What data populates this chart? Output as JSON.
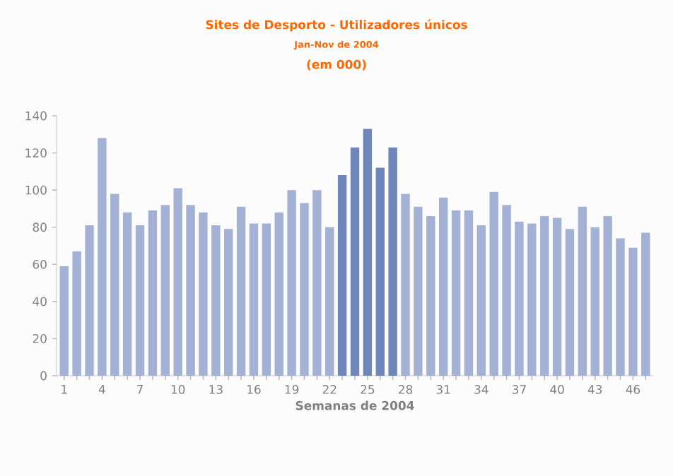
{
  "chart_data": {
    "type": "bar",
    "title": "Sites de Desporto - Utilizadores únicos",
    "subtitle": "Jan-Nov de 2004",
    "annotations": [
      "(em 000)"
    ],
    "xlabel": "Semanas de 2004",
    "categories": [
      "1",
      null,
      null,
      "4",
      null,
      null,
      "7",
      null,
      null,
      "10",
      null,
      null,
      "13",
      null,
      null,
      "16",
      null,
      null,
      "19",
      null,
      null,
      "22",
      null,
      null,
      "25",
      null,
      null,
      "28",
      null,
      null,
      "31",
      null,
      null,
      "34",
      null,
      null,
      "37",
      null,
      null,
      "40",
      null,
      null,
      "43",
      null,
      null,
      "46",
      null
    ],
    "values": [
      59,
      67,
      81,
      128,
      98,
      88,
      81,
      89,
      92,
      101,
      92,
      88,
      81,
      79,
      91,
      82,
      82,
      88,
      100,
      93,
      100,
      80,
      108,
      123,
      133,
      112,
      123,
      98,
      91,
      86,
      96,
      89,
      89,
      81,
      99,
      92,
      83,
      82,
      86,
      85,
      79,
      91,
      80,
      86,
      74,
      69,
      77
    ],
    "colors": [
      "#a3b1d4",
      "#a3b1d4",
      "#a3b1d4",
      "#a3b1d4",
      "#a3b1d4",
      "#a3b1d4",
      "#a3b1d4",
      "#a3b1d4",
      "#a3b1d4",
      "#a3b1d4",
      "#a3b1d4",
      "#a3b1d4",
      "#a3b1d4",
      "#a3b1d4",
      "#a3b1d4",
      "#a3b1d4",
      "#a3b1d4",
      "#a3b1d4",
      "#a3b1d4",
      "#a3b1d4",
      "#a3b1d4",
      "#a3b1d4",
      "#6f86bb",
      "#6f86bb",
      "#6f86bb",
      "#6f86bb",
      "#6f86bb",
      "#a3b1d4",
      "#a3b1d4",
      "#a3b1d4",
      "#a3b1d4",
      "#a3b1d4",
      "#a3b1d4",
      "#a3b1d4",
      "#a3b1d4",
      "#a3b1d4",
      "#a3b1d4",
      "#a3b1d4",
      "#a3b1d4",
      "#a3b1d4",
      "#a3b1d4",
      "#a3b1d4",
      "#a3b1d4",
      "#a3b1d4",
      "#a3b1d4",
      "#a3b1d4",
      "#a3b1d4"
    ],
    "ylim": [
      0,
      140
    ],
    "yticks": [
      0,
      20,
      40,
      60,
      80,
      100,
      120,
      140
    ]
  }
}
